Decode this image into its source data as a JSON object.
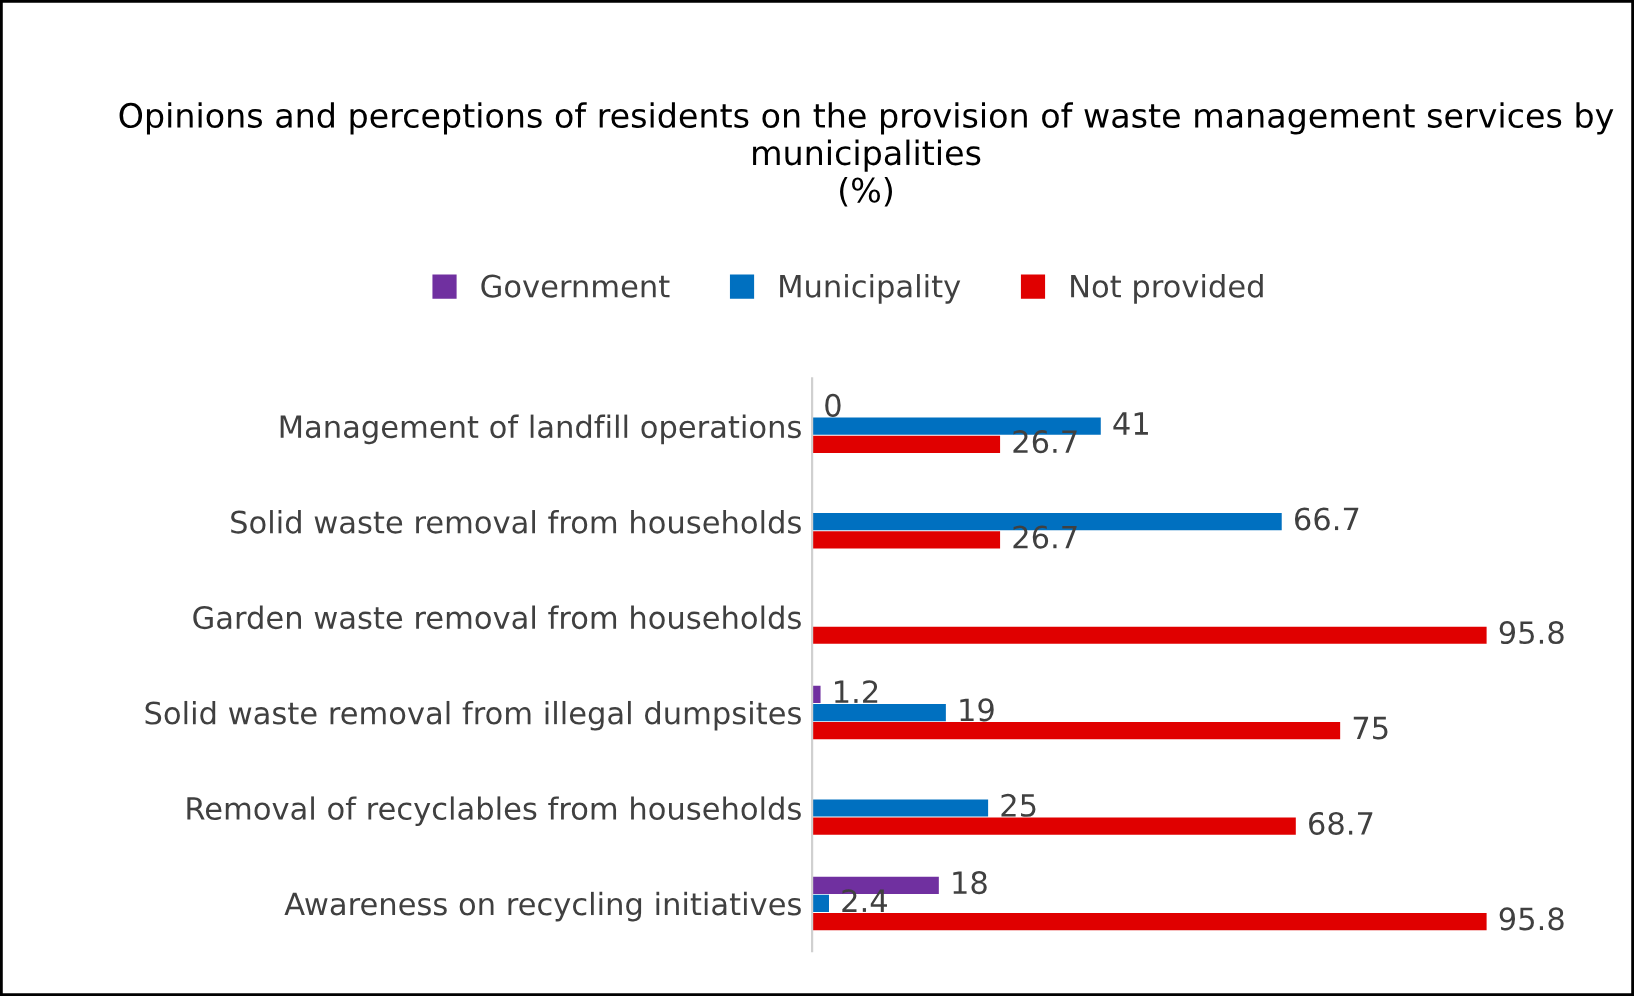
{
  "chart_data": {
    "type": "bar",
    "orientation": "horizontal",
    "title": "Opinions and perceptions of residents on the provision of waste management services by municipalities\n(%)",
    "categories": [
      "Management of landfill operations",
      "Solid waste removal from households",
      "Garden waste removal from households",
      "Solid waste removal from illegal dumpsites",
      "Removal of recyclables from households",
      "Awareness on recycling initiatives"
    ],
    "series": [
      {
        "name": "Government",
        "color": "#7030a0",
        "values": [
          0,
          null,
          null,
          1.2,
          null,
          18
        ]
      },
      {
        "name": "Municipality",
        "color": "#0070c0",
        "values": [
          41,
          66.7,
          null,
          19,
          25,
          2.4
        ]
      },
      {
        "name": "Not provided",
        "color": "#e00000",
        "values": [
          26.7,
          26.7,
          95.8,
          75,
          68.7,
          95.8
        ]
      }
    ],
    "data_labels": true,
    "legend": "top",
    "grid": false,
    "tick_labels": "y"
  }
}
